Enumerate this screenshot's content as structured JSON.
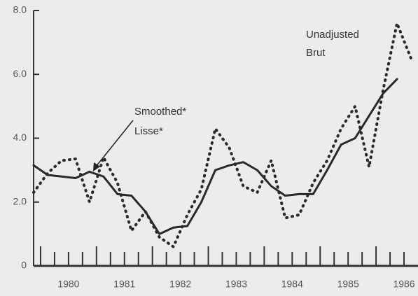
{
  "chart_data": {
    "type": "line",
    "annotations": [
      "Smoothed*",
      "Lisse*",
      "Unadjusted",
      "Brut"
    ],
    "x": [
      1979.875,
      1980.125,
      1980.375,
      1980.625,
      1980.875,
      1981.125,
      1981.375,
      1981.625,
      1981.875,
      1982.125,
      1982.375,
      1982.625,
      1982.875,
      1983.125,
      1983.375,
      1983.625,
      1983.875,
      1984.125,
      1984.375,
      1984.625,
      1984.875,
      1985.125,
      1985.375,
      1985.625,
      1985.875,
      1986.125,
      1986.375,
      1986.625
    ],
    "series": [
      {
        "name": "Smoothed*",
        "color": "#2a2a2a",
        "style": "solid",
        "values": [
          3.15,
          2.85,
          2.8,
          2.75,
          2.95,
          2.8,
          2.25,
          2.2,
          1.7,
          1.0,
          1.2,
          1.25,
          2.0,
          3.0,
          3.15,
          3.25,
          3.0,
          2.5,
          2.2,
          2.25,
          2.25,
          3.0,
          3.8,
          4.0,
          4.7,
          5.4,
          5.85,
          null
        ]
      },
      {
        "name": "Unadjusted",
        "color": "#2a2a2a",
        "style": "dotted",
        "values": [
          2.3,
          2.9,
          3.3,
          3.35,
          2.0,
          3.4,
          2.6,
          1.1,
          1.7,
          0.9,
          0.6,
          1.6,
          2.4,
          4.3,
          3.7,
          2.5,
          2.3,
          3.3,
          1.5,
          1.6,
          2.6,
          3.3,
          4.3,
          5.0,
          3.1,
          5.5,
          7.6,
          6.5
        ]
      }
    ],
    "xlim": [
      1979.875,
      1986.75
    ],
    "xticks": [
      {
        "value": 1980.5,
        "label": "1980"
      },
      {
        "value": 1981.5,
        "label": "1981"
      },
      {
        "value": 1982.5,
        "label": "1982"
      },
      {
        "value": 1983.5,
        "label": "1983"
      },
      {
        "value": 1984.5,
        "label": "1984"
      },
      {
        "value": 1985.5,
        "label": "1985"
      },
      {
        "value": 1986.5,
        "label": "1986"
      }
    ],
    "ylim": [
      0,
      8
    ],
    "yticks": [
      0,
      {
        "value": 2,
        "label": "2.0"
      },
      {
        "value": 4,
        "label": "4.0"
      },
      {
        "value": 6,
        "label": "6.0"
      },
      {
        "value": 8,
        "label": "8.0"
      }
    ]
  }
}
